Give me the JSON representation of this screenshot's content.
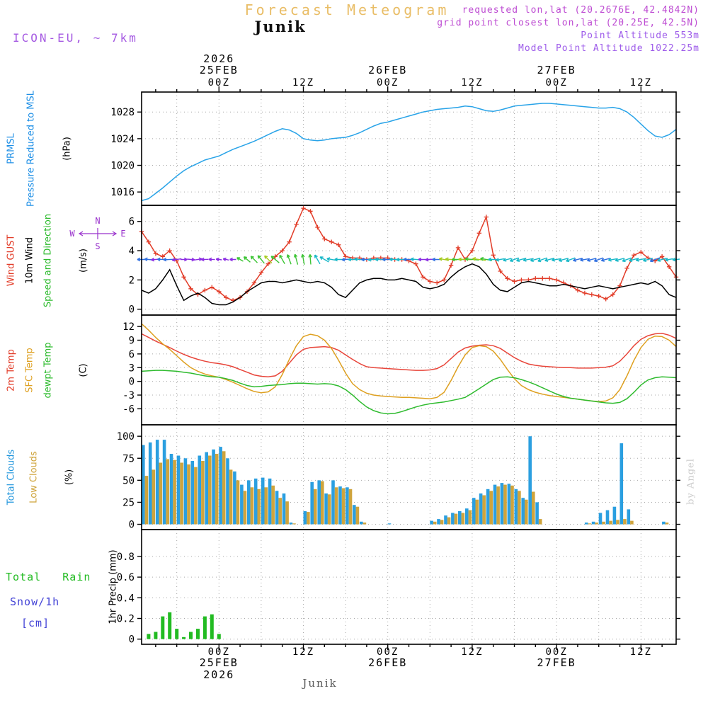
{
  "header": {
    "title": "Forecast Meteogram",
    "station": "Junik",
    "model": "ICON-EU, ~ 7km",
    "requested": "requested lon,lat (20.2676E, 42.4842N)",
    "grid_point": "grid point closest lon,lat (20.25E, 42.5N)",
    "point_altitude": "Point Altitude 553m",
    "model_point_altitude": "Model Point Altitude 1022.25m"
  },
  "footer": {
    "station": "Junik"
  },
  "watermark": "by Angel",
  "time_axis": {
    "start_hour": -11,
    "end_hour": 65,
    "year": "2026",
    "days": [
      {
        "label": "25FEB",
        "hour": 0
      },
      {
        "label": "26FEB",
        "hour": 24
      },
      {
        "label": "27FEB",
        "hour": 48
      }
    ],
    "hour_labels": [
      {
        "label": "00Z",
        "hour": 0
      },
      {
        "label": "12Z",
        "hour": 12
      },
      {
        "label": "00Z",
        "hour": 24
      },
      {
        "label": "12Z",
        "hour": 36
      },
      {
        "label": "00Z",
        "hour": 48
      },
      {
        "label": "12Z",
        "hour": 60
      }
    ]
  },
  "chart_data": [
    {
      "id": "pressure",
      "type": "line",
      "legend": [
        {
          "text": "PRMSL",
          "color": "#1e8fe6"
        },
        {
          "text": "Pressure Reduced to MSL",
          "color": "#1e8fe6"
        },
        {
          "text": "(hPa)",
          "color": "#000000"
        }
      ],
      "ylabel": "(hPa)",
      "ylim": [
        1014,
        1031
      ],
      "yticks": [
        1016,
        1020,
        1024,
        1028
      ],
      "series": [
        {
          "name": "PRMSL",
          "color": "#28a3e8",
          "marker": "none",
          "values": [
            1014.7,
            1015,
            1015.8,
            1016.6,
            1017.5,
            1018.4,
            1019.2,
            1019.8,
            1020.3,
            1020.8,
            1021.1,
            1021.4,
            1021.9,
            1022.4,
            1022.8,
            1023.2,
            1023.6,
            1024.1,
            1024.6,
            1025.1,
            1025.5,
            1025.3,
            1024.8,
            1024,
            1023.8,
            1023.7,
            1023.8,
            1024,
            1024.1,
            1024.2,
            1024.5,
            1024.9,
            1025.4,
            1025.9,
            1026.3,
            1026.5,
            1026.8,
            1027.1,
            1027.4,
            1027.7,
            1028,
            1028.2,
            1028.4,
            1028.5,
            1028.6,
            1028.7,
            1028.9,
            1028.8,
            1028.5,
            1028.2,
            1028.1,
            1028.3,
            1028.6,
            1028.9,
            1029,
            1029.1,
            1029.2,
            1029.3,
            1029.3,
            1029.2,
            1029.1,
            1029,
            1028.9,
            1028.8,
            1028.7,
            1028.6,
            1028.6,
            1028.7,
            1028.5,
            1028,
            1027.2,
            1026.2,
            1025.2,
            1024.4,
            1024.2,
            1024.6,
            1025.4
          ]
        }
      ]
    },
    {
      "id": "wind",
      "type": "line",
      "legend": [
        {
          "text": "Wind GUST",
          "color": "#e23c28"
        },
        {
          "text": "10m Wind",
          "color": "#000000"
        },
        {
          "text": "Speed and Direction",
          "color": "#2ebb2e"
        },
        {
          "text": "(m/s)",
          "color": "#000000"
        }
      ],
      "ylabel": "(m/s)",
      "ylim": [
        -0.4,
        7.1
      ],
      "yticks": [
        0,
        2,
        4,
        6
      ],
      "series": [
        {
          "name": "Wind GUST",
          "color": "#e23c28",
          "marker": "plus",
          "values": [
            5.3,
            4.6,
            3.8,
            3.6,
            4,
            3.3,
            2.2,
            1.4,
            1,
            1.3,
            1.5,
            1.2,
            0.8,
            0.6,
            0.8,
            1.2,
            1.8,
            2.5,
            3.1,
            3.6,
            4,
            4.6,
            5.8,
            6.9,
            6.7,
            5.6,
            4.8,
            4.6,
            4.4,
            3.6,
            3.5,
            3.5,
            3.4,
            3.5,
            3.5,
            3.5,
            3.4,
            3.4,
            3.3,
            3.1,
            2.2,
            1.9,
            1.8,
            2,
            3,
            4.2,
            3.4,
            4,
            5.2,
            6.3,
            3.7,
            2.6,
            2.1,
            1.9,
            2,
            2,
            2.1,
            2.1,
            2.1,
            2,
            1.8,
            1.6,
            1.3,
            1.1,
            1,
            0.9,
            0.7,
            1,
            1.6,
            2.8,
            3.7,
            3.9,
            3.5,
            3.3,
            3.6,
            2.9,
            2.2
          ]
        },
        {
          "name": "10m Wind",
          "color": "#000000",
          "marker": "none",
          "values": [
            1.3,
            1.1,
            1.4,
            2,
            2.7,
            1.6,
            0.6,
            0.9,
            1.1,
            0.8,
            0.4,
            0.3,
            0.3,
            0.5,
            0.8,
            1.2,
            1.5,
            1.8,
            1.9,
            1.9,
            1.8,
            1.9,
            2,
            1.9,
            1.8,
            1.9,
            1.8,
            1.5,
            1,
            0.8,
            1.3,
            1.8,
            2,
            2.1,
            2.1,
            2,
            2,
            2.1,
            2,
            1.9,
            1.5,
            1.4,
            1.5,
            1.7,
            2.2,
            2.6,
            2.9,
            3.1,
            2.9,
            2.4,
            1.7,
            1.3,
            1.2,
            1.5,
            1.8,
            1.9,
            1.8,
            1.7,
            1.6,
            1.6,
            1.7,
            1.6,
            1.5,
            1.4,
            1.5,
            1.6,
            1.5,
            1.4,
            1.5,
            1.6,
            1.7,
            1.8,
            1.7,
            1.9,
            1.6,
            1,
            0.8
          ]
        }
      ],
      "vectors": {
        "y_position": 3.4,
        "speed_series_index": 1,
        "palette": {
          "p": "#8a2be2",
          "b": "#2f6fe0",
          "c": "#18b8c8",
          "g": "#3cc434",
          "y": "#a8cc20"
        },
        "dirs_deg": [
          180,
          175,
          185,
          178,
          182,
          188,
          0,
          355,
          8,
          182,
          178,
          172,
          168,
          180,
          150,
          140,
          135,
          130,
          135,
          140,
          120,
          110,
          105,
          100,
          95,
          120,
          150,
          170,
          180,
          185,
          180,
          175,
          180,
          185,
          180,
          180,
          178,
          182,
          180,
          175,
          180,
          185,
          180,
          170,
          175,
          180,
          178,
          175,
          172,
          170,
          180,
          190,
          195,
          200,
          195,
          190,
          195,
          200,
          195,
          190,
          195,
          200,
          195,
          190,
          195,
          200,
          195,
          190,
          195,
          200,
          195,
          190,
          195,
          200,
          195,
          190,
          185
        ],
        "colors": [
          "b",
          "b",
          "p",
          "b",
          "b",
          "p",
          "p",
          "p",
          "p",
          "p",
          "p",
          "p",
          "p",
          "p",
          "g",
          "g",
          "g",
          "g",
          "y",
          "g",
          "g",
          "g",
          "g",
          "g",
          "g",
          "c",
          "c",
          "c",
          "c",
          "b",
          "c",
          "c",
          "b",
          "c",
          "c",
          "b",
          "c",
          "c",
          "b",
          "c",
          "p",
          "p",
          "b",
          "y",
          "y",
          "g",
          "y",
          "g",
          "y",
          "g",
          "c",
          "c",
          "c",
          "c",
          "c",
          "c",
          "c",
          "c",
          "c",
          "c",
          "c",
          "c",
          "b",
          "b",
          "b",
          "b",
          "b",
          "c",
          "c",
          "c",
          "c",
          "c",
          "c",
          "b",
          "c",
          "c",
          "c"
        ]
      },
      "compass": {
        "n": "N",
        "e": "E",
        "s": "S",
        "w": "W",
        "color": "#9932cc"
      }
    },
    {
      "id": "temperature",
      "type": "line",
      "legend": [
        {
          "text": "2m Temp",
          "color": "#e23c28"
        },
        {
          "text": "SFC Temp",
          "color": "#dea020"
        },
        {
          "text": "dewpt Temp",
          "color": "#2ebb2e"
        },
        {
          "text": "(C)",
          "color": "#000000"
        }
      ],
      "ylabel": "(C)",
      "ylim": [
        -9.5,
        14.5
      ],
      "yticks": [
        -6,
        -3,
        0,
        3,
        6,
        9,
        12
      ],
      "series": [
        {
          "name": "2m Temp",
          "color": "#e8453a",
          "marker": "none",
          "values": [
            10.4,
            9.6,
            8.8,
            8.1,
            7.4,
            6.6,
            5.9,
            5.3,
            4.8,
            4.4,
            4.1,
            3.9,
            3.6,
            3.2,
            2.6,
            2,
            1.4,
            1.1,
            1,
            1.2,
            2.2,
            4,
            5.8,
            7,
            7.4,
            7.5,
            7.6,
            7.4,
            6.8,
            5.8,
            4.8,
            3.9,
            3.2,
            3,
            2.9,
            2.8,
            2.7,
            2.6,
            2.5,
            2.4,
            2.4,
            2.5,
            2.8,
            3.6,
            5,
            6.4,
            7.3,
            7.7,
            7.9,
            8,
            7.8,
            7.2,
            6.2,
            5.2,
            4.4,
            3.8,
            3.5,
            3.3,
            3.2,
            3.1,
            3,
            3,
            2.9,
            2.9,
            2.9,
            3,
            3.1,
            3.4,
            4.4,
            6,
            7.8,
            9.2,
            10,
            10.4,
            10.5,
            10.1,
            9.4
          ]
        },
        {
          "name": "SFC Temp",
          "color": "#dea020",
          "marker": "none",
          "values": [
            12.6,
            11.2,
            9.6,
            8.2,
            7,
            5.6,
            4.2,
            3,
            2.2,
            1.6,
            1.2,
            0.9,
            0.4,
            -0.2,
            -0.9,
            -1.6,
            -2.2,
            -2.5,
            -2.3,
            -1.2,
            1.5,
            4.8,
            7.8,
            9.8,
            10.3,
            10,
            9,
            7.2,
            4.6,
            1.8,
            -0.5,
            -1.8,
            -2.6,
            -3,
            -3.2,
            -3.3,
            -3.4,
            -3.5,
            -3.5,
            -3.6,
            -3.7,
            -3.8,
            -3.5,
            -2.4,
            0.2,
            3.2,
            5.8,
            7.4,
            7.8,
            7.6,
            6.6,
            4.8,
            2.6,
            0.6,
            -0.9,
            -1.8,
            -2.4,
            -2.8,
            -3.1,
            -3.3,
            -3.5,
            -3.7,
            -3.9,
            -4.1,
            -4.3,
            -4.4,
            -4.3,
            -3.6,
            -1.8,
            1.2,
            4.6,
            7.4,
            9.2,
            9.9,
            9.8,
            9,
            7.6
          ]
        },
        {
          "name": "dewpt Temp",
          "color": "#2ebb2e",
          "marker": "none",
          "values": [
            2.2,
            2.3,
            2.4,
            2.4,
            2.3,
            2.2,
            2,
            1.8,
            1.5,
            1.2,
            1,
            0.9,
            0.6,
            0.2,
            -0.4,
            -0.9,
            -1.2,
            -1.1,
            -0.9,
            -0.8,
            -0.7,
            -0.5,
            -0.4,
            -0.4,
            -0.5,
            -0.6,
            -0.5,
            -0.6,
            -1,
            -1.8,
            -3,
            -4.4,
            -5.6,
            -6.4,
            -6.9,
            -7.1,
            -7,
            -6.6,
            -6.1,
            -5.6,
            -5.2,
            -4.9,
            -4.7,
            -4.5,
            -4.2,
            -3.9,
            -3.5,
            -2.6,
            -1.6,
            -0.6,
            0.4,
            0.9,
            1,
            0.8,
            0.4,
            -0.1,
            -0.7,
            -1.4,
            -2.1,
            -2.8,
            -3.3,
            -3.7,
            -3.9,
            -4.1,
            -4.3,
            -4.5,
            -4.7,
            -4.8,
            -4.6,
            -3.8,
            -2.4,
            -0.8,
            0.3,
            0.8,
            1,
            0.9,
            0.8
          ]
        }
      ]
    },
    {
      "id": "clouds",
      "type": "bar",
      "legend": [
        {
          "text": "Total Clouds",
          "color": "#2196dd"
        },
        {
          "text": "Low Clouds",
          "color": "#cfa43c"
        },
        {
          "text": "(%)",
          "color": "#000000"
        }
      ],
      "ylabel": "(%)",
      "ylim": [
        -6,
        113
      ],
      "yticks": [
        0,
        25,
        50,
        75,
        100
      ],
      "series": [
        {
          "name": "Total Clouds",
          "color": "#2b9fe0",
          "values": [
            90,
            93,
            96,
            96,
            80,
            78,
            75,
            72,
            78,
            82,
            85,
            88,
            75,
            60,
            45,
            50,
            52,
            53,
            52,
            38,
            35,
            2,
            0,
            15,
            48,
            50,
            35,
            50,
            43,
            42,
            22,
            3,
            0,
            0,
            0,
            1,
            0,
            0,
            0,
            0,
            0,
            4,
            6,
            10,
            13,
            15,
            18,
            30,
            35,
            40,
            45,
            47,
            46,
            40,
            30,
            100,
            25,
            0,
            0,
            0,
            0,
            0,
            0,
            2,
            3,
            13,
            16,
            20,
            92,
            17,
            0,
            0,
            0,
            0,
            3,
            0,
            0
          ]
        },
        {
          "name": "Low Clouds",
          "color": "#cfa43c",
          "values": [
            55,
            62,
            70,
            74,
            73,
            70,
            68,
            65,
            72,
            78,
            80,
            83,
            62,
            50,
            38,
            42,
            40,
            42,
            44,
            30,
            26,
            1,
            0,
            14,
            40,
            49,
            34,
            42,
            41,
            40,
            20,
            2,
            0,
            0,
            0,
            0,
            0,
            0,
            0,
            0,
            0,
            3,
            5,
            8,
            12,
            13,
            16,
            28,
            33,
            38,
            43,
            45,
            44,
            38,
            28,
            37,
            6,
            0,
            0,
            0,
            0,
            0,
            0,
            1,
            2,
            3,
            4,
            5,
            6,
            4,
            0,
            0,
            0,
            0,
            2,
            0,
            0
          ]
        }
      ]
    },
    {
      "id": "precip",
      "type": "bar",
      "legend_lines": [
        {
          "text": "Total   Rain",
          "color": "#22bb22"
        },
        {
          "text": "Snow/1h",
          "color": "#4343d6"
        },
        {
          "text": "[cm]",
          "color": "#4343d6"
        }
      ],
      "legend": [
        {
          "text": "1hr Precip (mm)",
          "color": "#000000"
        }
      ],
      "ylabel": "1hr Precip (mm)",
      "ylim": [
        -0.05,
        1.06
      ],
      "yticks": [
        0,
        0.2,
        0.4,
        0.6,
        0.8
      ],
      "series": [
        {
          "name": "Rain",
          "color": "#22bb22",
          "values": [
            0,
            0.05,
            0.07,
            0.22,
            0.26,
            0.1,
            0.02,
            0.07,
            0.1,
            0.22,
            0.24,
            0.05,
            0,
            0,
            0,
            0,
            0,
            0,
            0,
            0,
            0,
            0,
            0,
            0,
            0,
            0,
            0,
            0,
            0,
            0,
            0,
            0,
            0,
            0,
            0,
            0,
            0,
            0,
            0,
            0,
            0,
            0,
            0,
            0,
            0,
            0,
            0,
            0,
            0,
            0,
            0,
            0,
            0,
            0,
            0,
            0,
            0,
            0,
            0,
            0,
            0,
            0,
            0,
            0,
            0,
            0,
            0,
            0,
            0,
            0,
            0,
            0,
            0,
            0,
            0,
            0,
            0
          ]
        }
      ]
    }
  ]
}
